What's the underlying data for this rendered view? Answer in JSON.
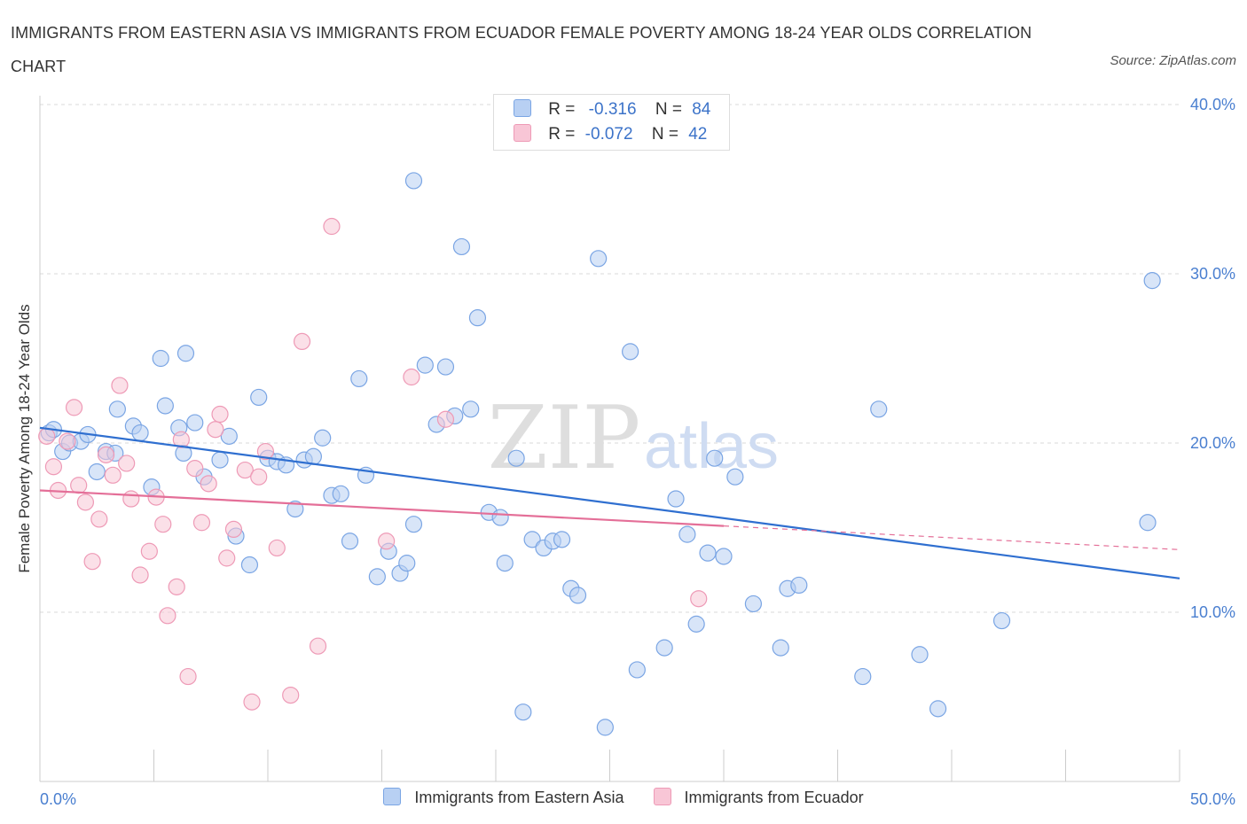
{
  "title": "IMMIGRANTS FROM EASTERN ASIA VS IMMIGRANTS FROM ECUADOR FEMALE POVERTY AMONG 18-24 YEAR OLDS CORRELATION CHART",
  "source": "Source: ZipAtlas.com",
  "watermark": {
    "zip": "ZIP",
    "atlas": "atlas"
  },
  "legend_top": [
    {
      "r_label": "R =",
      "r_value": "-0.316",
      "n_label": "N =",
      "n_value": "84"
    },
    {
      "r_label": "R =",
      "r_value": "-0.072",
      "n_label": "N =",
      "n_value": "42"
    }
  ],
  "colors": {
    "blue_fill": "#b8d0f3",
    "blue_stroke": "#7aa5e4",
    "blue_line": "#2f6fd0",
    "pink_fill": "#f8c6d6",
    "pink_stroke": "#ee9ab6",
    "pink_line": "#e46f98",
    "grid": "#d9d9d9",
    "axis_tick": "#4a7fd0"
  },
  "chart_data": {
    "type": "scatter",
    "ylabel": "Female Poverty Among 18-24 Year Olds",
    "xlim": [
      0,
      50
    ],
    "ylim": [
      0,
      40
    ],
    "x_tick_labels": [
      {
        "value": 0,
        "label": "0.0%"
      },
      {
        "value": 50,
        "label": "50.0%"
      }
    ],
    "y_tick_labels": [
      {
        "value": 10,
        "label": "10.0%"
      },
      {
        "value": 20,
        "label": "20.0%"
      },
      {
        "value": 30,
        "label": "30.0%"
      },
      {
        "value": 40,
        "label": "40.0%"
      }
    ],
    "grid": true,
    "series": [
      {
        "name": "Immigrants from Eastern Asia",
        "color": "blue",
        "points": [
          [
            0.4,
            20.6
          ],
          [
            0.6,
            20.8
          ],
          [
            1.0,
            19.5
          ],
          [
            1.3,
            20.0
          ],
          [
            1.8,
            20.1
          ],
          [
            2.1,
            20.5
          ],
          [
            2.5,
            18.3
          ],
          [
            2.9,
            19.5
          ],
          [
            3.3,
            19.4
          ],
          [
            3.4,
            22.0
          ],
          [
            4.1,
            21.0
          ],
          [
            4.4,
            20.6
          ],
          [
            4.9,
            17.4
          ],
          [
            5.3,
            25.0
          ],
          [
            5.5,
            22.2
          ],
          [
            6.1,
            20.9
          ],
          [
            6.3,
            19.4
          ],
          [
            6.4,
            25.3
          ],
          [
            6.8,
            21.2
          ],
          [
            7.2,
            18.0
          ],
          [
            7.9,
            19.0
          ],
          [
            8.3,
            20.4
          ],
          [
            8.6,
            14.5
          ],
          [
            9.2,
            12.8
          ],
          [
            9.6,
            22.7
          ],
          [
            10.0,
            19.1
          ],
          [
            10.4,
            18.9
          ],
          [
            10.8,
            18.7
          ],
          [
            11.2,
            16.1
          ],
          [
            11.6,
            19.0
          ],
          [
            12.0,
            19.2
          ],
          [
            12.4,
            20.3
          ],
          [
            12.8,
            16.9
          ],
          [
            13.2,
            17.0
          ],
          [
            13.6,
            14.2
          ],
          [
            14.0,
            23.8
          ],
          [
            14.3,
            18.1
          ],
          [
            14.8,
            12.1
          ],
          [
            15.3,
            13.6
          ],
          [
            15.8,
            12.3
          ],
          [
            16.1,
            12.9
          ],
          [
            16.4,
            15.2
          ],
          [
            16.9,
            24.6
          ],
          [
            17.4,
            21.1
          ],
          [
            17.8,
            24.5
          ],
          [
            18.2,
            21.6
          ],
          [
            18.5,
            31.6
          ],
          [
            18.9,
            22.0
          ],
          [
            19.2,
            27.4
          ],
          [
            19.7,
            15.9
          ],
          [
            20.2,
            15.6
          ],
          [
            20.4,
            12.9
          ],
          [
            20.9,
            19.1
          ],
          [
            21.2,
            4.1
          ],
          [
            21.6,
            14.3
          ],
          [
            22.1,
            13.8
          ],
          [
            22.5,
            14.2
          ],
          [
            22.9,
            14.3
          ],
          [
            23.3,
            11.4
          ],
          [
            23.6,
            11.0
          ],
          [
            24.5,
            30.9
          ],
          [
            24.8,
            3.2
          ],
          [
            25.9,
            25.4
          ],
          [
            26.2,
            6.6
          ],
          [
            27.4,
            7.9
          ],
          [
            27.9,
            16.7
          ],
          [
            28.4,
            14.6
          ],
          [
            28.8,
            9.3
          ],
          [
            29.3,
            13.5
          ],
          [
            29.6,
            19.1
          ],
          [
            30.0,
            13.3
          ],
          [
            30.5,
            18.0
          ],
          [
            31.3,
            10.5
          ],
          [
            32.5,
            7.9
          ],
          [
            32.8,
            11.4
          ],
          [
            33.3,
            11.6
          ],
          [
            36.1,
            6.2
          ],
          [
            36.8,
            22.0
          ],
          [
            38.6,
            7.5
          ],
          [
            39.4,
            4.3
          ],
          [
            42.2,
            9.5
          ],
          [
            48.6,
            15.3
          ],
          [
            48.8,
            29.6
          ],
          [
            16.4,
            35.5
          ]
        ]
      },
      {
        "name": "Immigrants from Ecuador",
        "color": "pink",
        "points": [
          [
            0.3,
            20.4
          ],
          [
            0.6,
            18.6
          ],
          [
            0.8,
            17.2
          ],
          [
            1.2,
            20.1
          ],
          [
            1.5,
            22.1
          ],
          [
            1.7,
            17.5
          ],
          [
            2.0,
            16.5
          ],
          [
            2.3,
            13.0
          ],
          [
            2.6,
            15.5
          ],
          [
            2.9,
            19.3
          ],
          [
            3.2,
            18.1
          ],
          [
            3.5,
            23.4
          ],
          [
            3.8,
            18.8
          ],
          [
            4.0,
            16.7
          ],
          [
            4.4,
            12.2
          ],
          [
            4.8,
            13.6
          ],
          [
            5.1,
            16.8
          ],
          [
            5.4,
            15.2
          ],
          [
            5.6,
            9.8
          ],
          [
            6.0,
            11.5
          ],
          [
            6.2,
            20.2
          ],
          [
            6.5,
            6.2
          ],
          [
            6.8,
            18.5
          ],
          [
            7.1,
            15.3
          ],
          [
            7.4,
            17.6
          ],
          [
            7.7,
            20.8
          ],
          [
            7.9,
            21.7
          ],
          [
            8.2,
            13.2
          ],
          [
            8.5,
            14.9
          ],
          [
            9.0,
            18.4
          ],
          [
            9.3,
            4.7
          ],
          [
            9.6,
            18.0
          ],
          [
            9.9,
            19.5
          ],
          [
            10.4,
            13.8
          ],
          [
            11.0,
            5.1
          ],
          [
            11.5,
            26.0
          ],
          [
            12.2,
            8.0
          ],
          [
            12.8,
            32.8
          ],
          [
            15.2,
            14.2
          ],
          [
            16.3,
            23.9
          ],
          [
            17.8,
            21.4
          ],
          [
            28.9,
            10.8
          ]
        ]
      }
    ],
    "trend_lines": [
      {
        "series": "Immigrants from Eastern Asia",
        "x": [
          0,
          50
        ],
        "y": [
          20.9,
          12.0
        ]
      },
      {
        "series": "Immigrants from Ecuador",
        "x": [
          0,
          30
        ],
        "y": [
          17.2,
          15.1
        ],
        "dashed_extension": {
          "x": [
            30,
            50
          ],
          "y": [
            15.1,
            13.7
          ]
        }
      }
    ]
  },
  "legend_bottom": [
    {
      "label": "Immigrants from Eastern Asia",
      "color": "blue"
    },
    {
      "label": "Immigrants from Ecuador",
      "color": "pink"
    }
  ]
}
